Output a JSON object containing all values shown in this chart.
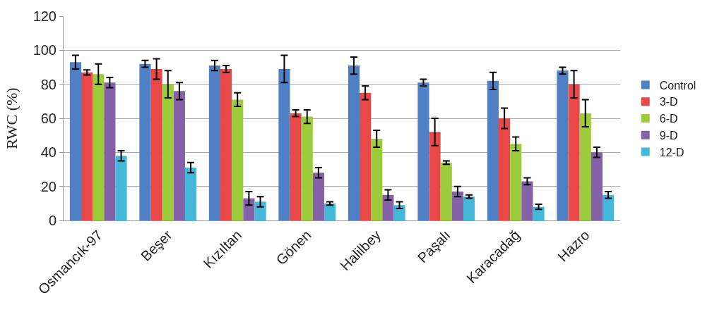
{
  "chart_data": {
    "type": "bar",
    "ylabel": "RWC (%)",
    "categories": [
      "Osmancık-97",
      "Beşer",
      "Kızıltan",
      "Gönen",
      "Halilbey",
      "Paşalı",
      "Karacadağ",
      "Hazro"
    ],
    "series": [
      {
        "name": "Control",
        "color": "#4f7fc4",
        "values": [
          93,
          92,
          91,
          89,
          91,
          81,
          82,
          88
        ],
        "errors": [
          4,
          2,
          3,
          8,
          5,
          2,
          5,
          2
        ]
      },
      {
        "name": "3-D",
        "color": "#e84848",
        "values": [
          87,
          89,
          89,
          63,
          75,
          52,
          60,
          80
        ],
        "errors": [
          1.5,
          6,
          2,
          2,
          4,
          8,
          6,
          8
        ]
      },
      {
        "name": "6-D",
        "color": "#9ccc3c",
        "values": [
          86,
          80,
          71,
          61,
          48,
          34,
          45,
          63
        ],
        "errors": [
          6,
          8,
          4,
          4,
          5,
          1,
          4,
          8
        ]
      },
      {
        "name": "9-D",
        "color": "#8562a8",
        "values": [
          81,
          76,
          13,
          28,
          15,
          17,
          23,
          40
        ],
        "errors": [
          3,
          5,
          4,
          3,
          3,
          3,
          2,
          3
        ]
      },
      {
        "name": "12-D",
        "color": "#44b8d8",
        "values": [
          38,
          31,
          11,
          10,
          9,
          14,
          8,
          15
        ],
        "errors": [
          3,
          3,
          3,
          1,
          2,
          1,
          1.5,
          2
        ]
      }
    ],
    "ylim": [
      0,
      120
    ],
    "yticks": [
      0,
      20,
      40,
      60,
      80,
      100,
      120
    ],
    "grid": "y",
    "legend": "right"
  }
}
